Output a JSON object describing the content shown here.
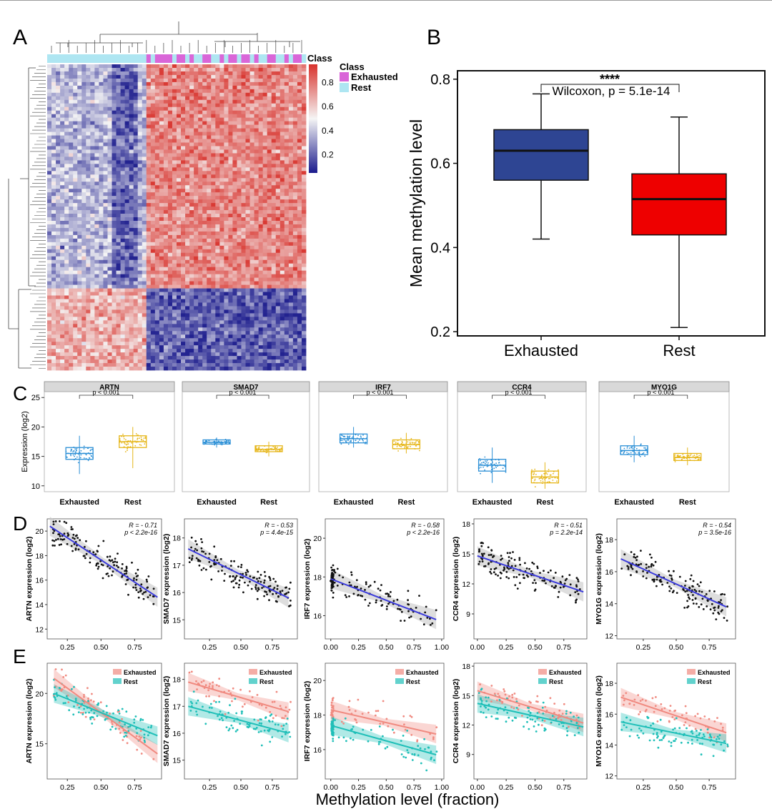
{
  "panels": {
    "A": "A",
    "B": "B",
    "C": "C",
    "D": "D",
    "E": "E"
  },
  "panel_a": {
    "class_header": "Class",
    "legend_title": "Class",
    "legend_items": [
      {
        "label": "Exhausted",
        "color": "#d966d8"
      },
      {
        "label": "Rest",
        "color": "#aee6f2"
      }
    ],
    "colorbar_ticks": [
      "0.8",
      "0.6",
      "0.4",
      "0.2"
    ],
    "colorbar_colors": {
      "high": "#d8322c",
      "mid": "#f5f5f5",
      "low": "#1a1a8c"
    }
  },
  "panel_c_ylabel": "Expression (log2)",
  "panel_d_e_shared_xlabel": "Methylation level (fraction)",
  "colors": {
    "exhausted_box_b": "#2e4593",
    "rest_box_b": "#ee0000",
    "exhausted_c": "#2b8fd6",
    "rest_c": "#e6b619",
    "regression_d": "#3b3bdc",
    "band_d": "#c8c8c8",
    "exhausted_e": "#f08a80",
    "rest_e": "#1fbfb8"
  },
  "chart_data": [
    {
      "id": "heatmap_A",
      "type": "heatmap",
      "columns_group_labels": [
        "Exhausted",
        "Rest"
      ],
      "scale_range": [
        0.05,
        0.95
      ],
      "note_text": ""
    },
    {
      "id": "boxplot_B",
      "type": "box",
      "ylabel": "Mean methylation level",
      "categories": [
        "Exhausted",
        "Rest"
      ],
      "yticks": [
        "0.2",
        "0.4",
        "0.6",
        "0.8"
      ],
      "ylim": [
        0.19,
        0.82
      ],
      "boxes": [
        {
          "name": "Exhausted",
          "min": 0.42,
          "q1": 0.56,
          "median": 0.63,
          "q3": 0.68,
          "max": 0.765
        },
        {
          "name": "Rest",
          "min": 0.21,
          "q1": 0.43,
          "median": 0.515,
          "q3": 0.575,
          "max": 0.71
        }
      ],
      "significance": "****",
      "test_label": "Wilcoxon, p = 5.1e-14"
    },
    {
      "id": "boxplots_C",
      "type": "box",
      "ylabel": "Expression (log2)",
      "yticks": [
        "10",
        "15",
        "20",
        "25"
      ],
      "ylim": [
        9,
        26
      ],
      "categories": [
        "Exhausted",
        "Rest"
      ],
      "genes": [
        {
          "gene": "ARTN",
          "p": "p < 0.001",
          "exhausted": {
            "min": 12,
            "q1": 14.5,
            "median": 15.5,
            "q3": 16.5,
            "max": 18.5
          },
          "rest": {
            "min": 13,
            "q1": 16.5,
            "median": 17.5,
            "q3": 18.5,
            "max": 20
          }
        },
        {
          "gene": "SMAD7",
          "p": "p < 0.001",
          "exhausted": {
            "min": 16.5,
            "q1": 17.1,
            "median": 17.4,
            "q3": 17.8,
            "max": 18.2
          },
          "rest": {
            "min": 15,
            "q1": 15.8,
            "median": 16.2,
            "q3": 16.8,
            "max": 17.5
          }
        },
        {
          "gene": "IRF7",
          "p": "p < 0.001",
          "exhausted": {
            "min": 16.5,
            "q1": 17.3,
            "median": 18,
            "q3": 18.8,
            "max": 20
          },
          "rest": {
            "min": 15.5,
            "q1": 16.3,
            "median": 17,
            "q3": 17.8,
            "max": 19
          }
        },
        {
          "gene": "CCR4",
          "p": "p < 0.001",
          "exhausted": {
            "min": 10.5,
            "q1": 12.5,
            "median": 13.5,
            "q3": 14.5,
            "max": 16.5
          },
          "rest": {
            "min": 9.5,
            "q1": 10.5,
            "median": 11.5,
            "q3": 12.5,
            "max": 14
          }
        },
        {
          "gene": "MYO1G",
          "p": "p < 0.001",
          "exhausted": {
            "min": 14,
            "q1": 15.3,
            "median": 16,
            "q3": 16.8,
            "max": 18.5
          },
          "rest": {
            "min": 13.5,
            "q1": 14.3,
            "median": 14.8,
            "q3": 15.5,
            "max": 16.5
          }
        }
      ]
    },
    {
      "id": "scatter_D",
      "type": "scatter",
      "panels": [
        {
          "gene": "ARTN",
          "ylabel": "ARTN expression (log2)",
          "r_label": "R = - 0.71",
          "p_label": "p < 2.2e-16",
          "xticks": [
            "0.25",
            "0.50",
            "0.75"
          ],
          "xlim": [
            0.1,
            0.95
          ],
          "yticks": [
            "12",
            "14",
            "16",
            "18",
            "20"
          ],
          "ylim": [
            11.2,
            21
          ],
          "fit": [
            [
              0.12,
              20.4
            ],
            [
              0.92,
              14.6
            ]
          ]
        },
        {
          "gene": "SMAD7",
          "ylabel": "SMAD7 expression (log2)",
          "r_label": "R = - 0.53",
          "p_label": "p = 4.4e-15",
          "xticks": [
            "0.25",
            "0.50",
            "0.75"
          ],
          "xlim": [
            0.05,
            0.95
          ],
          "yticks": [
            "15",
            "16",
            "17",
            "18"
          ],
          "ylim": [
            14.3,
            18.7
          ],
          "fit": [
            [
              0.08,
              17.6
            ],
            [
              0.88,
              15.8
            ]
          ]
        },
        {
          "gene": "IRF7",
          "ylabel": "IRF7 expression (log2)",
          "r_label": "R = - 0.58",
          "p_label": "p < 2.2e-16",
          "xticks": [
            "0.00",
            "0.25",
            "0.50",
            "0.75",
            "1.00"
          ],
          "xlim": [
            -0.05,
            1.02
          ],
          "yticks": [
            "16",
            "18",
            "20"
          ],
          "ylim": [
            14.8,
            21
          ],
          "fit": [
            [
              0.0,
              17.9
            ],
            [
              0.95,
              15.8
            ]
          ]
        },
        {
          "gene": "CCR4",
          "ylabel": "CCR4 expression (log2)",
          "r_label": "R = - 0.51",
          "p_label": "p = 2.2e-14",
          "xticks": [
            "0.00",
            "0.25",
            "0.50",
            "0.75"
          ],
          "xlim": [
            -0.03,
            0.95
          ],
          "yticks": [
            "9",
            "12",
            "15",
            "18"
          ],
          "ylim": [
            6.5,
            18.5
          ],
          "fit": [
            [
              0.0,
              14.8
            ],
            [
              0.92,
              11.2
            ]
          ]
        },
        {
          "gene": "MYO1G",
          "ylabel": "MYO1G expression (log2)",
          "r_label": "R = - 0.54",
          "p_label": "p = 3.5e-16",
          "xticks": [
            "0.25",
            "0.50",
            "0.75"
          ],
          "xlim": [
            0.05,
            0.95
          ],
          "yticks": [
            "12",
            "14",
            "16",
            "18"
          ],
          "ylim": [
            11.8,
            19.3
          ],
          "fit": [
            [
              0.08,
              16.8
            ],
            [
              0.88,
              13.8
            ]
          ]
        }
      ]
    },
    {
      "id": "scatter_E",
      "type": "scatter",
      "legend": [
        "Exhausted",
        "Rest"
      ],
      "panels": [
        {
          "gene": "ARTN",
          "ylabel": "ARTN expression (log2)",
          "xticks": [
            "0.25",
            "0.50",
            "0.75"
          ],
          "xlim": [
            0.1,
            0.95
          ],
          "yticks": [
            "15",
            "20"
          ],
          "ylim": [
            11.5,
            23
          ],
          "fit_exhausted": [
            [
              0.15,
              21.5
            ],
            [
              0.92,
              14
            ]
          ],
          "fit_rest": [
            [
              0.15,
              20
            ],
            [
              0.92,
              15.8
            ]
          ]
        },
        {
          "gene": "SMAD7",
          "ylabel": "SMAD7 expression (log2)",
          "xticks": [
            "0.25",
            "0.50",
            "0.75"
          ],
          "xlim": [
            0.05,
            0.95
          ],
          "yticks": [
            "15",
            "16",
            "17",
            "18"
          ],
          "ylim": [
            14.3,
            18.6
          ],
          "fit_exhausted": [
            [
              0.08,
              17.9
            ],
            [
              0.88,
              16.8
            ]
          ],
          "fit_rest": [
            [
              0.08,
              17
            ],
            [
              0.88,
              16
            ]
          ]
        },
        {
          "gene": "IRF7",
          "ylabel": "IRF7 expression (log2)",
          "xticks": [
            "0.00",
            "0.25",
            "0.50",
            "0.75",
            "1.00"
          ],
          "xlim": [
            -0.05,
            1.02
          ],
          "yticks": [
            "16",
            "18",
            "20"
          ],
          "ylim": [
            14.3,
            21
          ],
          "fit_exhausted": [
            [
              0.0,
              18.3
            ],
            [
              0.95,
              16.9
            ]
          ],
          "fit_rest": [
            [
              0.0,
              17.4
            ],
            [
              0.95,
              15.7
            ]
          ]
        },
        {
          "gene": "CCR4",
          "ylabel": "CCR4 expression (log2)",
          "xticks": [
            "0.00",
            "0.25",
            "0.50",
            "0.75"
          ],
          "xlim": [
            -0.03,
            0.95
          ],
          "yticks": [
            "9",
            "12",
            "15",
            "18"
          ],
          "ylim": [
            6.5,
            18.3
          ],
          "fit_exhausted": [
            [
              0.0,
              15.5
            ],
            [
              0.92,
              12.2
            ]
          ],
          "fit_rest": [
            [
              0.0,
              14.2
            ],
            [
              0.92,
              11.8
            ]
          ]
        },
        {
          "gene": "MYO1G",
          "ylabel": "MYO1G expression (log2)",
          "xticks": [
            "0.25",
            "0.50",
            "0.75"
          ],
          "xlim": [
            0.05,
            0.95
          ],
          "yticks": [
            "12",
            "14",
            "16",
            "18"
          ],
          "ylim": [
            11.8,
            19.3
          ],
          "fit_exhausted": [
            [
              0.08,
              17.1
            ],
            [
              0.88,
              14.8
            ]
          ],
          "fit_rest": [
            [
              0.08,
              15.5
            ],
            [
              0.88,
              14.1
            ]
          ]
        }
      ]
    }
  ]
}
